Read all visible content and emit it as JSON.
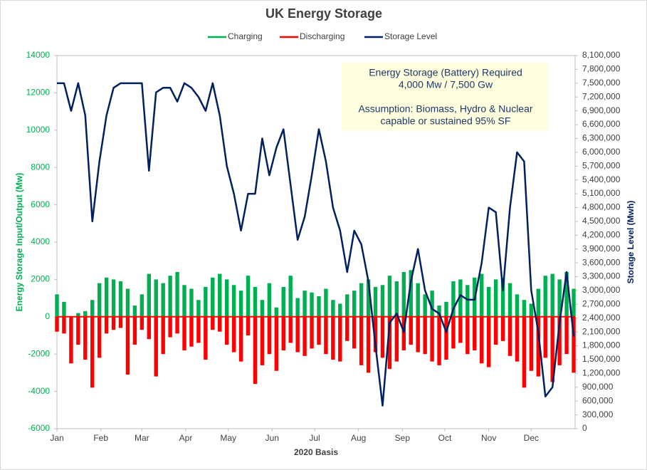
{
  "chart_data": {
    "type": "bar-line",
    "title": "UK Energy Storage",
    "x_label": "2020 Basis",
    "y_label": "Energy  Storage Input/Output (Mw)",
    "y2_label": "Storage Level (Mwh)",
    "annotation": [
      "Energy Storage (Battery) Required",
      "4,000 Mw / 7,500 Gw",
      "Assumption: Biomass, Hydro & Nuclear",
      "capable or sustained 95% SF"
    ],
    "xlim": [
      0,
      366
    ],
    "xticks": [
      {
        "value": 0,
        "label": "Jan"
      },
      {
        "value": 31,
        "label": "Feb"
      },
      {
        "value": 60,
        "label": "Mar"
      },
      {
        "value": 91,
        "label": "Apr"
      },
      {
        "value": 121,
        "label": "May"
      },
      {
        "value": 152,
        "label": "Jun"
      },
      {
        "value": 182,
        "label": "Jul"
      },
      {
        "value": 213,
        "label": "Aug"
      },
      {
        "value": 244,
        "label": "Sep"
      },
      {
        "value": 274,
        "label": "Oct"
      },
      {
        "value": 305,
        "label": "Nov"
      },
      {
        "value": 335,
        "label": "Dec"
      }
    ],
    "ylim": [
      -6000,
      14000
    ],
    "yticks": [
      -6000,
      -4000,
      -2000,
      0,
      2000,
      4000,
      6000,
      8000,
      10000,
      12000,
      14000
    ],
    "y2lim": [
      0,
      8100000
    ],
    "y2ticks": [
      0,
      {
        "value": 300000,
        "label": "300,000"
      },
      {
        "value": 600000,
        "label": "600,000"
      },
      {
        "value": 900000,
        "label": "900,000"
      },
      {
        "value": 1200000,
        "label": "1,200,000"
      },
      {
        "value": 1500000,
        "label": "1,500,000"
      },
      {
        "value": 1800000,
        "label": "1,800,000"
      },
      {
        "value": 2100000,
        "label": "2,100,000"
      },
      {
        "value": 2400000,
        "label": "2,400,000"
      },
      {
        "value": 2700000,
        "label": "2,700,000"
      },
      {
        "value": 3000000,
        "label": "3,000,000"
      },
      {
        "value": 3300000,
        "label": "3,300,000"
      },
      {
        "value": 3600000,
        "label": "3,600,000"
      },
      {
        "value": 3900000,
        "label": "3,900,000"
      },
      {
        "value": 4200000,
        "label": "4,200,000"
      },
      {
        "value": 4500000,
        "label": "4,500,000"
      },
      {
        "value": 4800000,
        "label": "4,800,000"
      },
      {
        "value": 5100000,
        "label": "5,100,000"
      },
      {
        "value": 5400000,
        "label": "5,400,000"
      },
      {
        "value": 5700000,
        "label": "5,700,000"
      },
      {
        "value": 6000000,
        "label": "6,000,000"
      },
      {
        "value": 6300000,
        "label": "6,300,000"
      },
      {
        "value": 6600000,
        "label": "6,600,000"
      },
      {
        "value": 6900000,
        "label": "6,900,000"
      },
      {
        "value": 7200000,
        "label": "7,200,000"
      },
      {
        "value": 7500000,
        "label": "7,500,000"
      },
      {
        "value": 7800000,
        "label": "7,800,000"
      },
      {
        "value": 8100000,
        "label": "8,100,000"
      }
    ],
    "grid": false,
    "x": [
      0,
      5,
      10,
      15,
      20,
      25,
      30,
      35,
      40,
      45,
      50,
      55,
      60,
      65,
      70,
      75,
      80,
      85,
      90,
      95,
      100,
      105,
      110,
      115,
      120,
      125,
      130,
      135,
      140,
      145,
      150,
      155,
      160,
      165,
      170,
      175,
      180,
      185,
      190,
      195,
      200,
      205,
      210,
      215,
      220,
      225,
      230,
      235,
      240,
      245,
      250,
      255,
      260,
      265,
      270,
      275,
      280,
      285,
      290,
      295,
      300,
      305,
      310,
      315,
      320,
      325,
      330,
      335,
      340,
      345,
      350,
      355,
      360,
      365
    ],
    "series": [
      {
        "name": "Charging",
        "color": "#00b050",
        "kind": "bar",
        "axis": "y",
        "values": [
          1200,
          800,
          0,
          200,
          300,
          900,
          1800,
          2100,
          2000,
          1900,
          1500,
          600,
          1200,
          2300,
          2000,
          1800,
          2200,
          2400,
          1700,
          1500,
          900,
          1600,
          2100,
          2300,
          2000,
          1700,
          1400,
          2200,
          1600,
          900,
          1800,
          500,
          1600,
          2200,
          1000,
          1400,
          1300,
          1100,
          1500,
          900,
          700,
          1200,
          1400,
          1800,
          2000,
          1600,
          1700,
          2200,
          1900,
          2400,
          2500,
          1800,
          1200,
          1400,
          600,
          800,
          1900,
          2000,
          1700,
          2100,
          2300,
          1600,
          2000,
          2100,
          1800,
          1200,
          900,
          700,
          1500,
          2200,
          2300,
          2000,
          2400,
          1500
        ]
      },
      {
        "name": "Discharging",
        "color": "#ff0000",
        "kind": "bar",
        "axis": "y",
        "values": [
          -800,
          -900,
          -2500,
          -1500,
          -2300,
          -3800,
          -2200,
          -900,
          -700,
          -600,
          -3100,
          -1500,
          -700,
          -1200,
          -3200,
          -2000,
          -1100,
          -900,
          -1800,
          -1600,
          -1400,
          -2300,
          -700,
          -800,
          -1500,
          -1900,
          -2400,
          -1000,
          -3600,
          -2600,
          -2000,
          -2900,
          -1800,
          -1400,
          -1900,
          -2100,
          -1700,
          -1500,
          -2000,
          -2300,
          -2400,
          -1300,
          -1700,
          -2600,
          -3000,
          -1900,
          -2200,
          -2800,
          -2400,
          -1800,
          -1500,
          -1900,
          -2000,
          -2400,
          -2600,
          -2300,
          -1700,
          -1400,
          -2000,
          -1800,
          -2500,
          -2700,
          -1500,
          -1300,
          -2100,
          -2400,
          -3800,
          -2900,
          -3200,
          -2200,
          -3500,
          -2600,
          -2000,
          -3000
        ]
      },
      {
        "name": "Storage Level",
        "color": "#002060",
        "kind": "line",
        "axis": "y2",
        "values": [
          7500000,
          7500000,
          6900000,
          7500000,
          6800000,
          4500000,
          5800000,
          6800000,
          7400000,
          7500000,
          7500000,
          7500000,
          7500000,
          5600000,
          7300000,
          7400000,
          7400000,
          7100000,
          7500000,
          7400000,
          7200000,
          6900000,
          7500000,
          6800000,
          5700000,
          5100000,
          4300000,
          5100000,
          5100000,
          6300000,
          5500000,
          6100000,
          6500000,
          5300000,
          4100000,
          4600000,
          5500000,
          6500000,
          5800000,
          4800000,
          4300000,
          3400000,
          4300000,
          4000000,
          3200000,
          1800000,
          500000,
          2300000,
          2500000,
          2100000,
          3200000,
          3900000,
          3000000,
          2600000,
          2500000,
          2100000,
          2600000,
          2900000,
          2800000,
          2800000,
          3600000,
          4800000,
          4700000,
          3000000,
          4800000,
          6000000,
          5800000,
          3000000,
          2100000,
          700000,
          900000,
          2300000,
          3400000,
          2000000
        ]
      }
    ]
  }
}
